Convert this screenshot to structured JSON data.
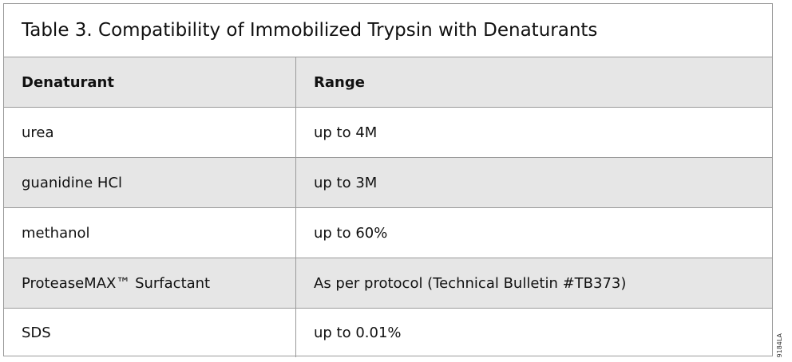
{
  "title": "Table 3. Compatibility of Immobilized Trypsin with Denaturants",
  "headers": [
    "Denaturant",
    "Range"
  ],
  "rows": [
    [
      "urea",
      "up to 4M"
    ],
    [
      "guanidine HCl",
      "up to 3M"
    ],
    [
      "methanol",
      "up to 60%"
    ],
    [
      "ProteaseMAX™ Surfactant",
      "As per protocol (Technical Bulletin #TB373)"
    ],
    [
      "SDS",
      "up to 0.01%"
    ]
  ],
  "figure_code": "9184LA",
  "colors": {
    "header_bg": "#e6e6e6",
    "border": "#9a9a9a"
  }
}
